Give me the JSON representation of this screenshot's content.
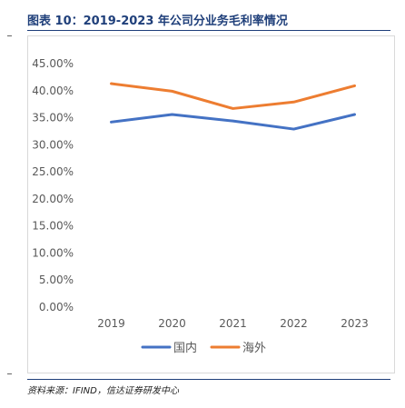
{
  "title": "图表 10：2019-2023 年公司分业务毛利率情况",
  "source": "资料来源：IFIND，信达证券研发中心",
  "colors": {
    "title_rule": "#1f3f7a",
    "grid": "#d9d9d9",
    "tick_text": "#595959"
  },
  "chart_data": {
    "type": "line",
    "categories": [
      "2019",
      "2020",
      "2021",
      "2022",
      "2023"
    ],
    "series": [
      {
        "name": "国内",
        "color": "#4472c4",
        "values": [
          34.2,
          35.6,
          34.4,
          32.9,
          35.6
        ]
      },
      {
        "name": "海外",
        "color": "#ed7d31",
        "values": [
          41.3,
          39.9,
          36.7,
          37.9,
          40.9
        ]
      }
    ],
    "yticks": [
      "0.00%",
      "5.00%",
      "10.00%",
      "15.00%",
      "20.00%",
      "25.00%",
      "30.00%",
      "35.00%",
      "40.00%",
      "45.00%"
    ],
    "ylim": [
      0,
      45
    ],
    "grid": false,
    "legend": "bottom"
  }
}
